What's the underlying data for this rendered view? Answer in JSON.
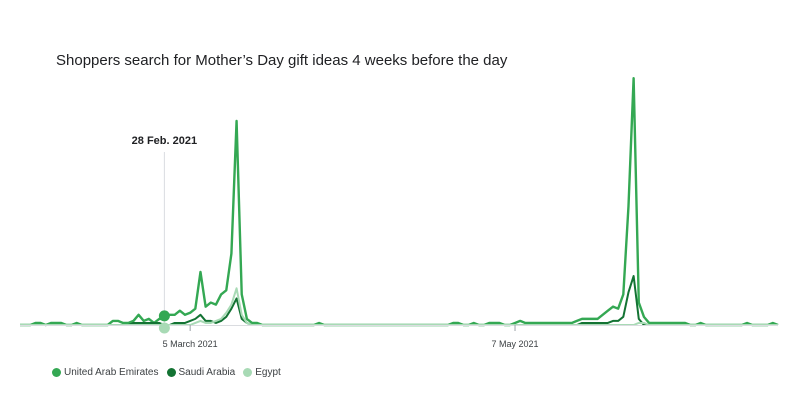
{
  "chart_data": {
    "type": "line",
    "title": "Shoppers search for Mother’s Day gift ideas 4 weeks before the day",
    "xlabel": "",
    "ylabel": "",
    "x_start": "2021-01-31",
    "x_ticks": [
      {
        "date": "2021-03-05",
        "label": "5 March 2021"
      },
      {
        "date": "2021-05-07",
        "label": "7 May 2021"
      }
    ],
    "ylim": [
      0,
      100
    ],
    "grid": false,
    "legend_position": "bottom-left",
    "highlight": {
      "date": "2021-02-28",
      "label": "28 Feb. 2021"
    },
    "series": [
      {
        "name": "United Arab Emirates",
        "color": "#34a853",
        "values": [
          0,
          0,
          0,
          1,
          1,
          0,
          1,
          1,
          1,
          0,
          0,
          1,
          0,
          0,
          0,
          0,
          0,
          0,
          2,
          2,
          1,
          1,
          2,
          5,
          2,
          3,
          1,
          3,
          3,
          5,
          5,
          7,
          5,
          6,
          8,
          26,
          9,
          11,
          10,
          15,
          17,
          35,
          100,
          15,
          3,
          1,
          1,
          0,
          0,
          0,
          0,
          0,
          0,
          0,
          0,
          0,
          0,
          0,
          1,
          0,
          0,
          0,
          0,
          0,
          0,
          0,
          0,
          0,
          0,
          0,
          0,
          0,
          0,
          0,
          0,
          0,
          0,
          0,
          0,
          0,
          0,
          0,
          0,
          0,
          1,
          1,
          0,
          0,
          1,
          0,
          0,
          1,
          1,
          1,
          0,
          0,
          1,
          2,
          1,
          1,
          1,
          1,
          1,
          1,
          1,
          1,
          1,
          1,
          2,
          3,
          3,
          3,
          3,
          5,
          7,
          9,
          8,
          15,
          58,
          121,
          11,
          4,
          1,
          1,
          1,
          1,
          1,
          1,
          1,
          1,
          0,
          0,
          1,
          0,
          0,
          0,
          0,
          0,
          0,
          0,
          0,
          1,
          0,
          0,
          0,
          0,
          1,
          0
        ]
      },
      {
        "name": "Saudi Arabia",
        "color": "#137333",
        "values": [
          0,
          0,
          0,
          0,
          0,
          0,
          0,
          0,
          0,
          0,
          0,
          0,
          0,
          0,
          0,
          0,
          0,
          0,
          0,
          0,
          0,
          0,
          1,
          1,
          1,
          1,
          1,
          1,
          0,
          0,
          1,
          1,
          1,
          2,
          3,
          5,
          2,
          2,
          1,
          2,
          4,
          8,
          13,
          3,
          1,
          0,
          0,
          0,
          0,
          0,
          0,
          0,
          0,
          0,
          0,
          0,
          0,
          0,
          0,
          0,
          0,
          0,
          0,
          0,
          0,
          0,
          0,
          0,
          0,
          0,
          0,
          0,
          0,
          0,
          0,
          0,
          0,
          0,
          0,
          0,
          0,
          0,
          0,
          0,
          0,
          0,
          0,
          0,
          0,
          0,
          0,
          0,
          0,
          0,
          0,
          0,
          0,
          0,
          0,
          0,
          0,
          0,
          0,
          0,
          0,
          0,
          0,
          0,
          0,
          1,
          1,
          1,
          1,
          1,
          1,
          2,
          2,
          4,
          16,
          24,
          3,
          0,
          0,
          0,
          0,
          0,
          0,
          0,
          0,
          0,
          0,
          0,
          0,
          0,
          0,
          0,
          0,
          0,
          0,
          0,
          0,
          0,
          0,
          0,
          0,
          0,
          0,
          0
        ]
      },
      {
        "name": "Egypt",
        "color": "#a8dab5",
        "values": [
          0,
          0,
          0,
          0,
          0,
          0,
          0,
          0,
          0,
          0,
          0,
          0,
          0,
          0,
          0,
          0,
          0,
          0,
          0,
          0,
          0,
          0,
          0,
          0,
          0,
          0,
          0,
          0,
          0,
          0,
          0,
          0,
          0,
          0,
          1,
          2,
          1,
          1,
          2,
          3,
          6,
          10,
          18,
          5,
          1,
          0,
          0,
          0,
          0,
          0,
          0,
          0,
          0,
          0,
          0,
          0,
          0,
          0,
          0,
          0,
          0,
          0,
          0,
          0,
          0,
          0,
          0,
          0,
          0,
          0,
          0,
          0,
          0,
          0,
          0,
          0,
          0,
          0,
          0,
          0,
          0,
          0,
          0,
          0,
          0,
          0,
          0,
          0,
          0,
          0,
          0,
          0,
          0,
          0,
          0,
          0,
          0,
          0,
          0,
          0,
          0,
          0,
          0,
          0,
          0,
          0,
          0,
          0,
          0,
          0,
          0,
          0,
          0,
          0,
          0,
          0,
          0,
          0,
          0,
          0,
          1,
          1,
          0,
          0,
          0,
          0,
          0,
          0,
          0,
          0,
          0,
          0,
          0,
          0,
          0,
          0,
          0,
          0,
          0,
          0,
          0,
          0,
          0,
          0,
          0,
          0,
          0,
          0
        ]
      }
    ]
  }
}
